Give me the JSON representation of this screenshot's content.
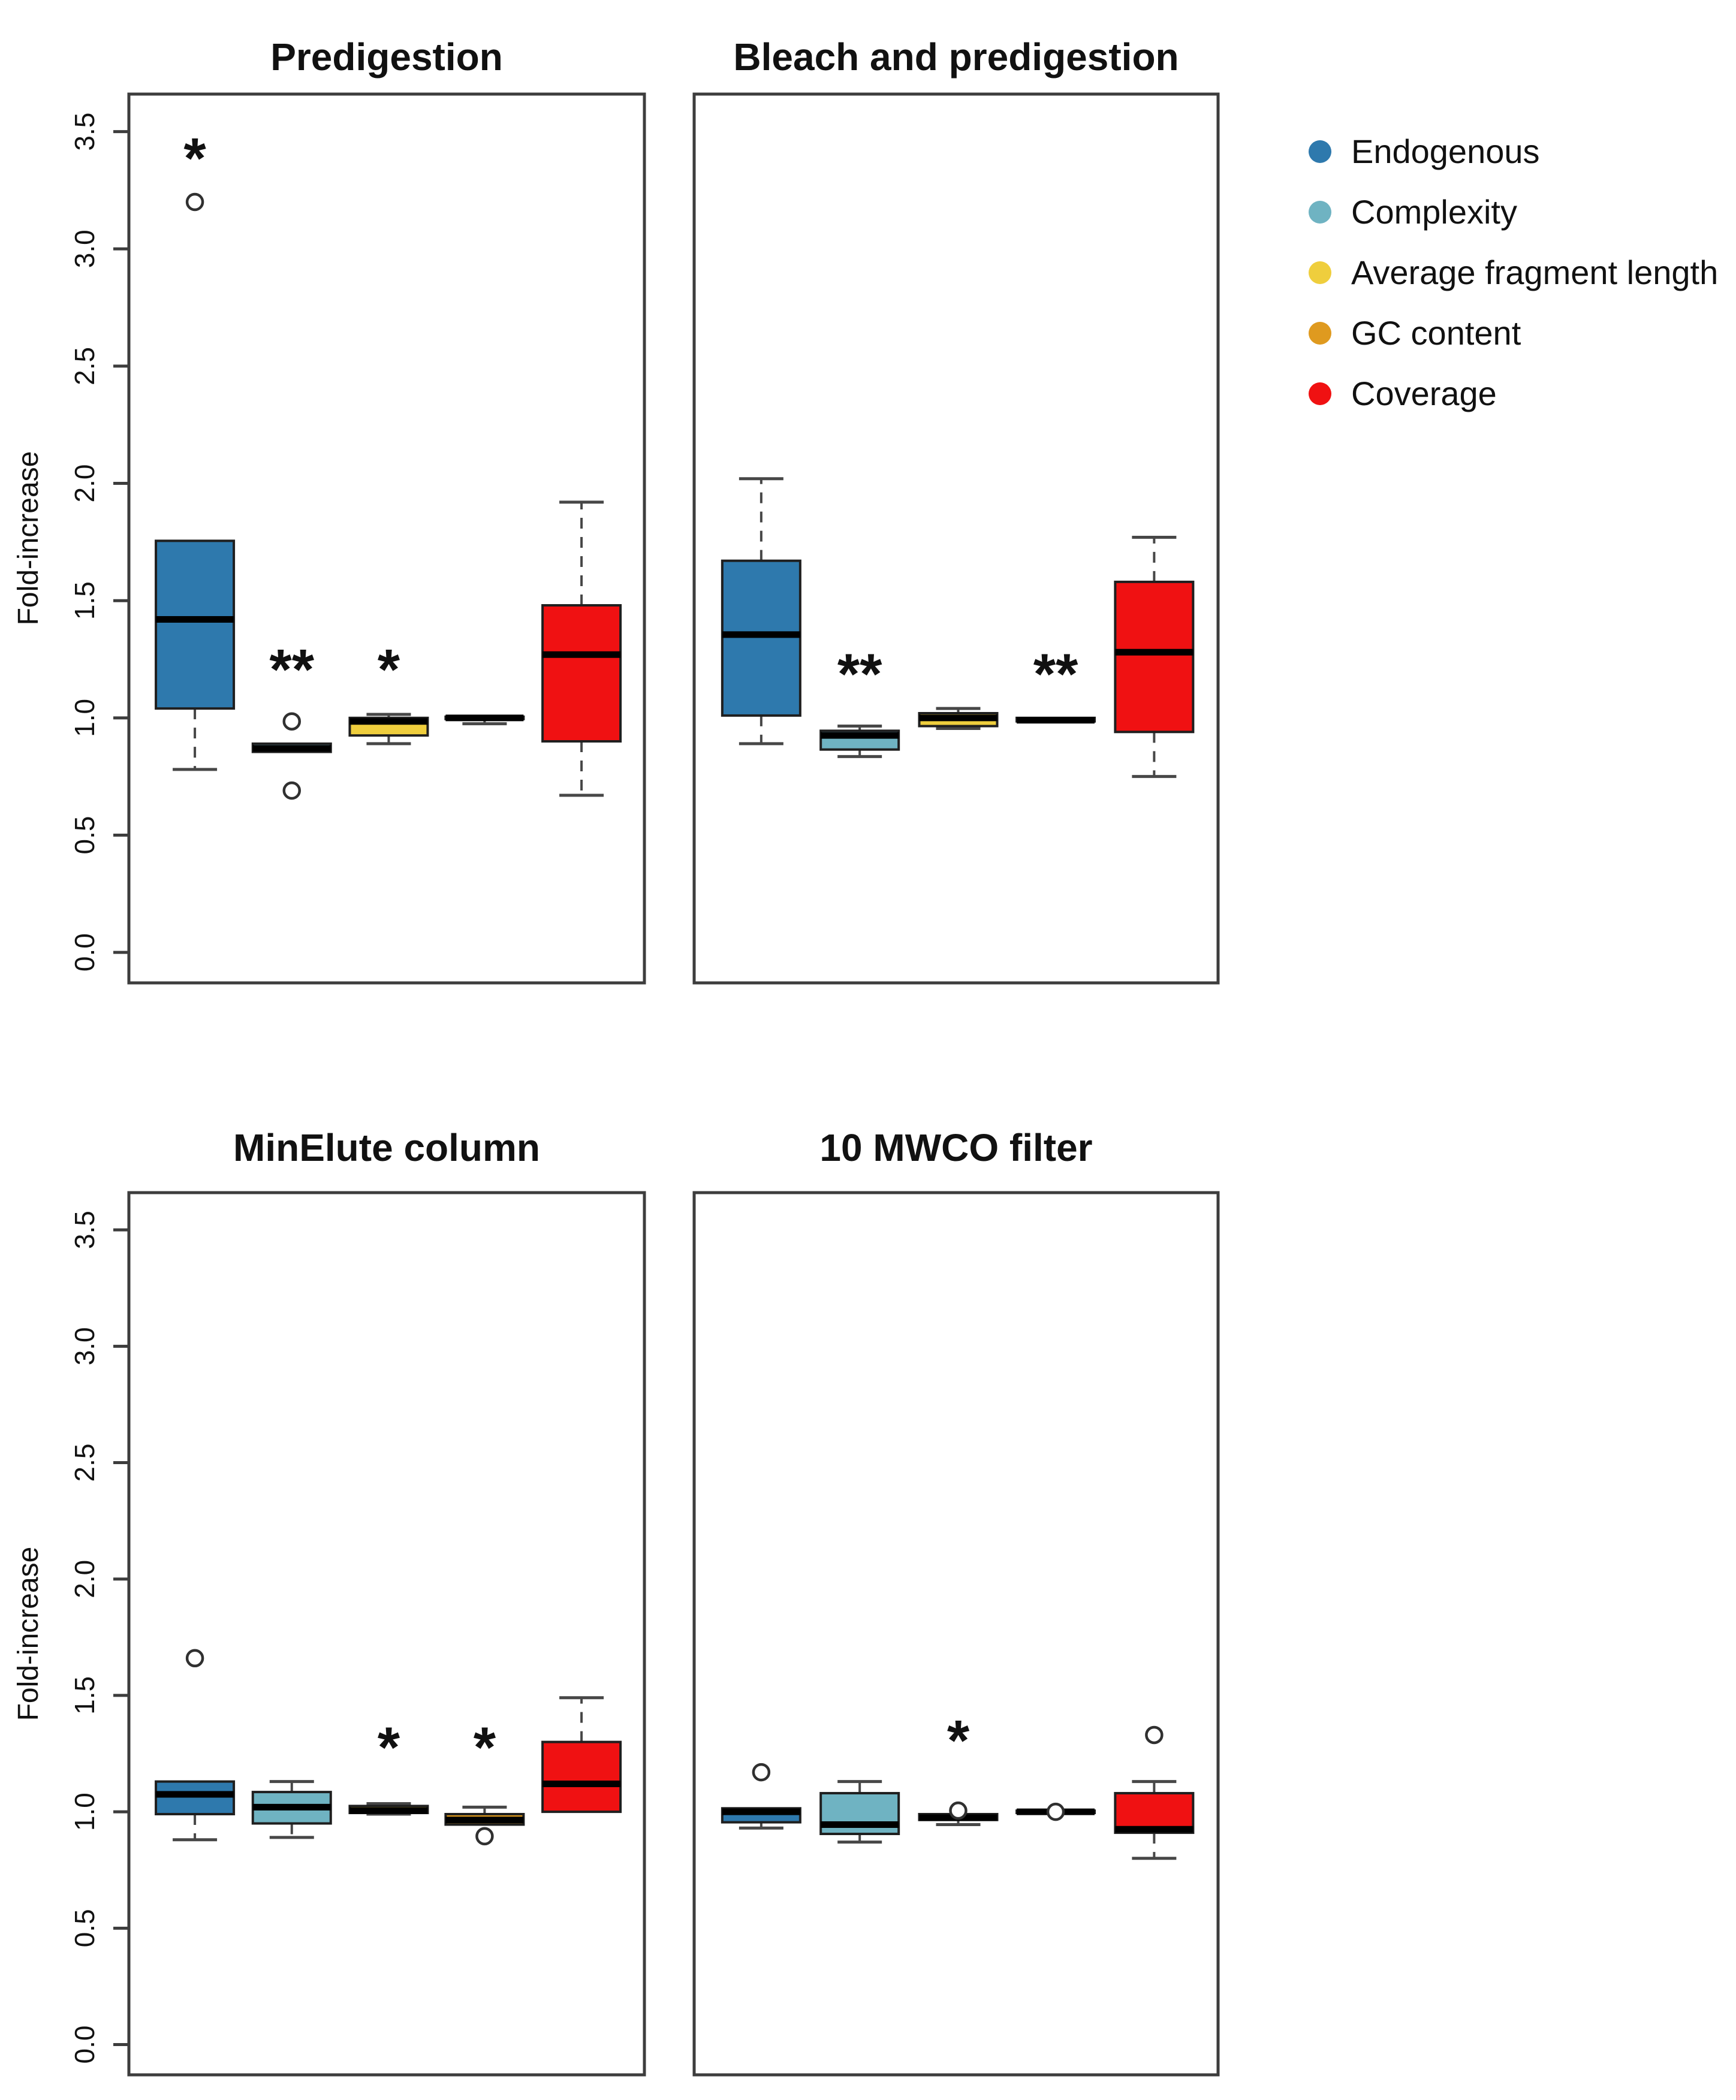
{
  "figure": {
    "ylabel": "Fold-increase"
  },
  "legend": {
    "items": [
      {
        "label": "Endogenous",
        "color": "#2E79AD"
      },
      {
        "label": "Complexity",
        "color": "#6FB3C2"
      },
      {
        "label": "Average fragment length",
        "color": "#EFCE3D"
      },
      {
        "label": "GC content",
        "color": "#DF9A1F"
      },
      {
        "label": "Coverage",
        "color": "#F01112"
      }
    ]
  },
  "chart_data": {
    "type": "boxplot",
    "ylabel": "Fold-increase",
    "ylim": [
      -0.13,
      3.66
    ],
    "grid": false,
    "legend_position": "top-right",
    "yticks": [
      {
        "v": 0.0,
        "label": "0.0"
      },
      {
        "v": 0.5,
        "label": "0.5"
      },
      {
        "v": 1.0,
        "label": "1.0"
      },
      {
        "v": 1.5,
        "label": "1.5"
      },
      {
        "v": 2.0,
        "label": "2.0"
      },
      {
        "v": 2.5,
        "label": "2.5"
      },
      {
        "v": 3.0,
        "label": "3.0"
      },
      {
        "v": 3.5,
        "label": "3.5"
      }
    ],
    "series_colors": {
      "Endogenous": "#2E79AD",
      "Complexity": "#6FB3C2",
      "Average fragment length": "#EFCE3D",
      "GC content": "#DF9A1F",
      "Coverage": "#F01112"
    },
    "panels": [
      {
        "title": "Predigestion",
        "show_y_ticks": true,
        "boxes": [
          {
            "series": "Endogenous",
            "q1": 1.04,
            "median": 1.42,
            "q3": 1.755,
            "whisker_low": 0.78,
            "whisker_high": null,
            "outliers": [
              3.2
            ],
            "sig": {
              "text": "*",
              "y": 3.41
            }
          },
          {
            "series": "Complexity",
            "q1": 0.855,
            "median": 0.87,
            "q3": 0.89,
            "whisker_low": null,
            "whisker_high": null,
            "outliers": [
              0.985,
              0.69
            ],
            "sig": {
              "text": "**",
              "y": 1.23
            }
          },
          {
            "series": "Average fragment length",
            "q1": 0.925,
            "median": 0.985,
            "q3": 1.0,
            "whisker_low": 0.89,
            "whisker_high": 1.015,
            "outliers": [],
            "sig": {
              "text": "*",
              "y": 1.23
            }
          },
          {
            "series": "GC content",
            "q1": 0.995,
            "median": 1.0,
            "q3": 1.005,
            "whisker_low": 0.975,
            "whisker_high": null,
            "outliers": [],
            "sig": null
          },
          {
            "series": "Coverage",
            "q1": 0.9,
            "median": 1.27,
            "q3": 1.48,
            "whisker_low": 0.67,
            "whisker_high": 1.92,
            "outliers": [],
            "sig": null
          }
        ]
      },
      {
        "title": "Bleach and predigestion",
        "show_y_ticks": false,
        "boxes": [
          {
            "series": "Endogenous",
            "q1": 1.01,
            "median": 1.355,
            "q3": 1.67,
            "whisker_low": 0.89,
            "whisker_high": 2.02,
            "outliers": [],
            "sig": null
          },
          {
            "series": "Complexity",
            "q1": 0.865,
            "median": 0.925,
            "q3": 0.945,
            "whisker_low": 0.835,
            "whisker_high": 0.965,
            "outliers": [],
            "sig": {
              "text": "**",
              "y": 1.21
            }
          },
          {
            "series": "Average fragment length",
            "q1": 0.965,
            "median": 1.0,
            "q3": 1.02,
            "whisker_low": 0.955,
            "whisker_high": 1.04,
            "outliers": [],
            "sig": null
          },
          {
            "series": "GC content",
            "q1": 0.985,
            "median": 0.99,
            "q3": 1.0,
            "whisker_low": null,
            "whisker_high": null,
            "outliers": [],
            "sig": {
              "text": "**",
              "y": 1.21
            }
          },
          {
            "series": "Coverage",
            "q1": 0.94,
            "median": 1.28,
            "q3": 1.58,
            "whisker_low": 0.75,
            "whisker_high": 1.77,
            "outliers": [],
            "sig": null
          }
        ]
      },
      {
        "title": "MinElute column",
        "show_y_ticks": true,
        "boxes": [
          {
            "series": "Endogenous",
            "q1": 0.99,
            "median": 1.075,
            "q3": 1.13,
            "whisker_low": 0.88,
            "whisker_high": null,
            "outliers": [
              1.66
            ],
            "sig": null
          },
          {
            "series": "Complexity",
            "q1": 0.95,
            "median": 1.02,
            "q3": 1.085,
            "whisker_low": 0.89,
            "whisker_high": 1.13,
            "outliers": [],
            "sig": null
          },
          {
            "series": "Average fragment length",
            "q1": 0.995,
            "median": 1.005,
            "q3": 1.025,
            "whisker_low": 0.99,
            "whisker_high": 1.035,
            "outliers": [],
            "sig": {
              "text": "*",
              "y": 1.3
            }
          },
          {
            "series": "GC content",
            "q1": 0.945,
            "median": 0.965,
            "q3": 0.99,
            "whisker_low": null,
            "whisker_high": 1.02,
            "outliers": [
              0.895
            ],
            "sig": {
              "text": "*",
              "y": 1.3
            }
          },
          {
            "series": "Coverage",
            "q1": 1.0,
            "median": 1.12,
            "q3": 1.3,
            "whisker_low": null,
            "whisker_high": 1.49,
            "outliers": [],
            "sig": null
          }
        ]
      },
      {
        "title": "10 MWCO filter",
        "show_y_ticks": false,
        "boxes": [
          {
            "series": "Endogenous",
            "q1": 0.955,
            "median": 1.0,
            "q3": 1.015,
            "whisker_low": 0.93,
            "whisker_high": null,
            "outliers": [
              1.17
            ],
            "sig": null
          },
          {
            "series": "Complexity",
            "q1": 0.905,
            "median": 0.945,
            "q3": 1.08,
            "whisker_low": 0.87,
            "whisker_high": 1.13,
            "outliers": [],
            "sig": null
          },
          {
            "series": "Average fragment length",
            "q1": 0.965,
            "median": 0.975,
            "q3": 0.99,
            "whisker_low": 0.945,
            "whisker_high": null,
            "outliers": [
              1.005
            ],
            "sig": {
              "text": "*",
              "y": 1.33
            }
          },
          {
            "series": "GC content",
            "q1": 0.995,
            "median": 1.0,
            "q3": 1.005,
            "whisker_low": null,
            "whisker_high": null,
            "outliers": [
              1.0
            ],
            "sig": null
          },
          {
            "series": "Coverage",
            "q1": 0.91,
            "median": 0.925,
            "q3": 1.08,
            "whisker_low": 0.8,
            "whisker_high": 1.13,
            "outliers": [
              1.33
            ],
            "sig": null
          }
        ]
      }
    ]
  }
}
